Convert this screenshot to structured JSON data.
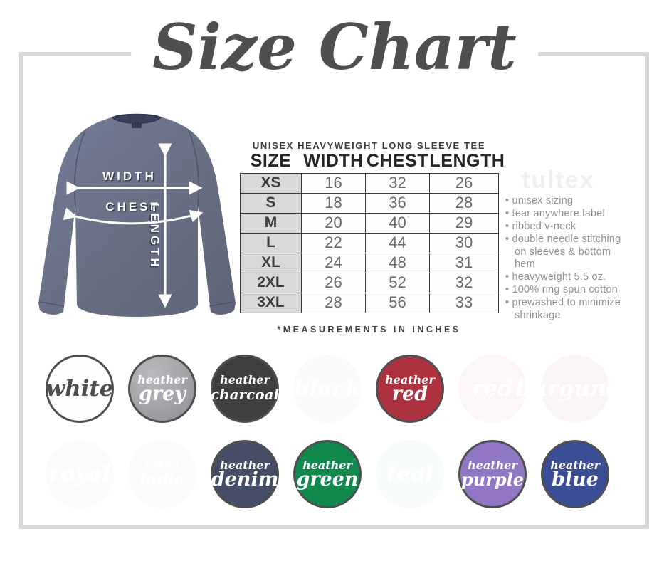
{
  "title": "Size Chart",
  "product": {
    "heading": "UNISEX HEAVYWEIGHT LONG SLEEVE TEE",
    "footnote": "*MEASUREMENTS IN INCHES"
  },
  "watermark": "tultex",
  "diagram": {
    "shirt_color": "#5a6278",
    "width_label": "WIDTH",
    "chest_label": "CHEST",
    "length_label": "LENGTH"
  },
  "chart_data": {
    "type": "table",
    "title": "UNISEX HEAVYWEIGHT LONG SLEEVE TEE",
    "units": "inches",
    "note": "*MEASUREMENTS IN INCHES",
    "columns": [
      "SIZE",
      "WIDTH",
      "CHEST",
      "LENGTH"
    ],
    "rows": [
      [
        "XS",
        16,
        32,
        26
      ],
      [
        "S",
        18,
        36,
        28
      ],
      [
        "M",
        20,
        40,
        29
      ],
      [
        "L",
        22,
        44,
        30
      ],
      [
        "XL",
        24,
        48,
        31
      ],
      [
        "2XL",
        26,
        52,
        32
      ],
      [
        "3XL",
        28,
        56,
        33
      ]
    ]
  },
  "features": [
    "unisex sizing",
    "tear anywhere label",
    "ribbed v-neck",
    "double needle stitching on sleeves & bottom hem",
    "heavyweight 5.5 oz.",
    "100% ring spun cotton",
    "prewashed to minimize shrinkage"
  ],
  "swatches": {
    "rows": [
      [
        {
          "id": "white",
          "lines": [
            "white"
          ],
          "bg": "#fdfdfd",
          "label_color": "#4e4e4e",
          "ghost": false
        },
        {
          "id": "heather-grey",
          "lines": [
            "heather",
            "grey"
          ],
          "bg": "#a3a4a8",
          "label_color": "#ffffff",
          "ghost": false
        },
        {
          "id": "heather-charcoal",
          "lines": [
            "heather",
            "charcoal"
          ],
          "bg": "#3f3f41",
          "label_color": "#ffffff",
          "ghost": false
        },
        {
          "id": "black",
          "lines": [
            "black"
          ],
          "bg": "#fbfafa",
          "label_color": "#ffffff",
          "ghost": true
        },
        {
          "id": "heather-red",
          "lines": [
            "heather",
            "red"
          ],
          "bg": "#ad3240",
          "label_color": "#ffffff",
          "ghost": false
        },
        {
          "id": "red",
          "lines": [
            "red"
          ],
          "bg": "#fdf6f6",
          "label_color": "#ffffff",
          "ghost": true
        },
        {
          "id": "burgundy",
          "lines": [
            "burgundy"
          ],
          "bg": "#fcf5f6",
          "label_color": "#ffffff",
          "ghost": true
        }
      ],
      [
        {
          "id": "royal",
          "lines": [
            "royal"
          ],
          "bg": "#fafbfd",
          "label_color": "#ffffff",
          "ghost": true
        },
        {
          "id": "inked-india",
          "lines": [
            "inked",
            "india"
          ],
          "bg": "#fbfbfd",
          "label_color": "#ffffff",
          "ghost": true
        },
        {
          "id": "heather-denim",
          "lines": [
            "heather",
            "denim"
          ],
          "bg": "#454e66",
          "label_color": "#ffffff",
          "ghost": false
        },
        {
          "id": "heather-green",
          "lines": [
            "heather",
            "green"
          ],
          "bg": "#10894f",
          "label_color": "#ffffff",
          "ghost": false
        },
        {
          "id": "teal",
          "lines": [
            "teal"
          ],
          "bg": "#f7fbfb",
          "label_color": "#ffffff",
          "ghost": true
        },
        {
          "id": "heather-purple",
          "lines": [
            "heather",
            "purple"
          ],
          "bg": "#9176c5",
          "label_color": "#ffffff",
          "ghost": false
        },
        {
          "id": "heather-blue",
          "lines": [
            "heather",
            "blue"
          ],
          "bg": "#3a4d95",
          "label_color": "#ffffff",
          "ghost": false
        }
      ]
    ]
  }
}
